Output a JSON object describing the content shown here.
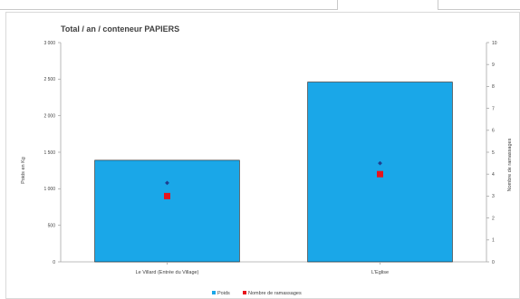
{
  "chart_data": {
    "type": "bar",
    "title": "Total / an / conteneur PAPIERS",
    "ylabel": "Poids en Kg",
    "y2label": "Nombre de ramassages",
    "categories": [
      "Le Villard (Entrée du Village)",
      "L'Eglise"
    ],
    "ylim": [
      0,
      3000
    ],
    "yticks": [
      "0",
      "500",
      "1 000",
      "1 500",
      "2 000",
      "2 500",
      "3 000"
    ],
    "y2lim": [
      0,
      10
    ],
    "y2ticks": [
      "0",
      "1",
      "2",
      "3",
      "4",
      "5",
      "6",
      "7",
      "8",
      "9",
      "10"
    ],
    "series": [
      {
        "name": "Poids",
        "type": "bar",
        "axis": "left",
        "values": [
          1390,
          2460
        ],
        "color": "#1aa7e8"
      },
      {
        "name": "Nombre de ramassages",
        "type": "marker",
        "axis": "right",
        "values": [
          3,
          4
        ],
        "color": "#e8141c"
      }
    ],
    "extra_points": {
      "axis": "right",
      "values": [
        3.6,
        4.5
      ],
      "color": "#1f3f8f"
    },
    "legend_position": "bottom",
    "grid": false
  }
}
